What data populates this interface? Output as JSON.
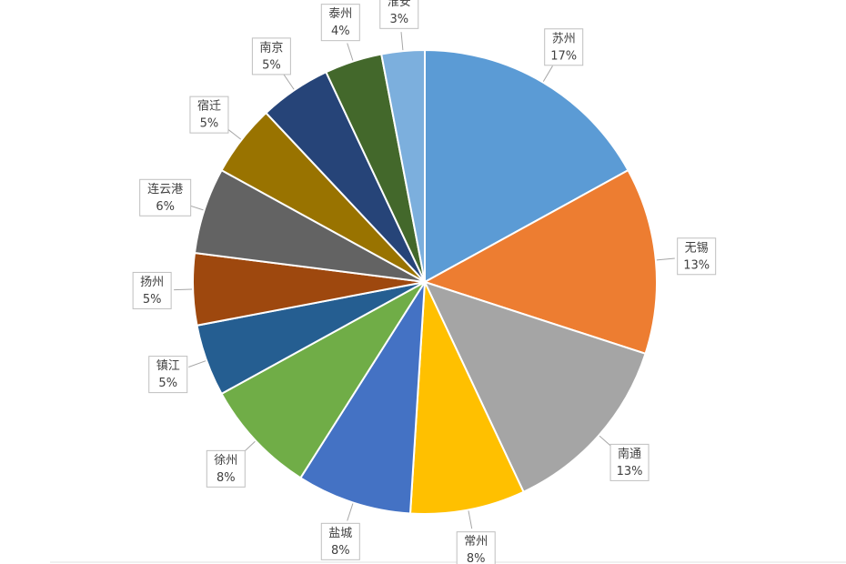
{
  "chart_data": {
    "type": "pie",
    "categories": [
      "苏州",
      "无锡",
      "南通",
      "常州",
      "盐城",
      "徐州",
      "镇江",
      "扬州",
      "连云港",
      "宿迁",
      "南京",
      "泰州",
      "淮安"
    ],
    "values": [
      17,
      13,
      13,
      8,
      8,
      8,
      5,
      5,
      6,
      5,
      5,
      4,
      3
    ],
    "value_labels": [
      "17%",
      "13%",
      "13%",
      "8%",
      "8%",
      "8%",
      "5%",
      "5%",
      "6%",
      "5%",
      "5%",
      "4%",
      "3%"
    ],
    "colors": [
      "#5b9bd5",
      "#ed7d31",
      "#a5a5a5",
      "#ffc000",
      "#4472c4",
      "#70ad47",
      "#255e91",
      "#9e480e",
      "#636363",
      "#997300",
      "#264478",
      "#43682b",
      "#7cafdd"
    ]
  }
}
